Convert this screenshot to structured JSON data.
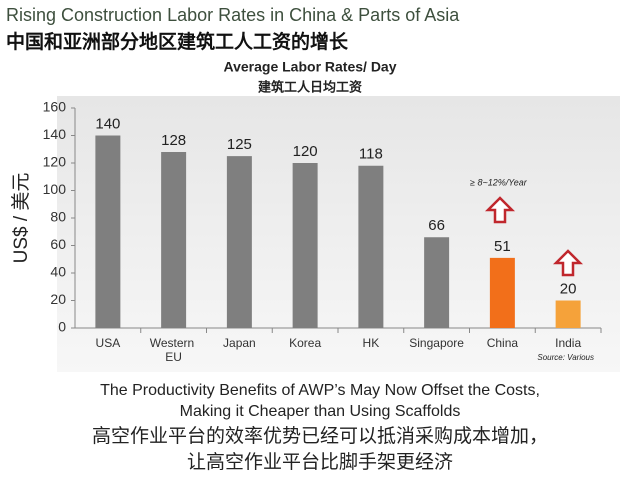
{
  "chart_data": {
    "type": "bar",
    "header": "Rising Construction Labor Rates in China & Parts of Asia",
    "header_cn": "中国和亚洲部分地区建筑工人工资的增长",
    "title": "Average Labor Rates/ Day",
    "subtitle": "建筑工人日均工资",
    "y_label": "US$ / 美元",
    "categories": [
      "USA",
      "Western EU",
      "Japan",
      "Korea",
      "HK",
      "Singapore",
      "China",
      "India"
    ],
    "values": [
      140,
      128,
      125,
      120,
      118,
      66,
      51,
      20
    ],
    "colors": [
      "#7f7f7f",
      "#7f7f7f",
      "#7f7f7f",
      "#7f7f7f",
      "#7f7f7f",
      "#7f7f7f",
      "#f26f1a",
      "#f5a23a"
    ],
    "ylim": [
      0,
      160
    ],
    "yticks": [
      0,
      20,
      40,
      60,
      80,
      100,
      120,
      140,
      160
    ],
    "annotation": "≥ 8~12%/Year",
    "source": "Source: Various",
    "footer": [
      "The Productivity Benefits of AWP’s May Now Offset the Costs,",
      "Making it Cheaper than Using Scaffolds",
      "高空作业平台的效率优势已经可以抵消采购成本增加，",
      "让高空作业平台比脚手架更经济"
    ]
  }
}
